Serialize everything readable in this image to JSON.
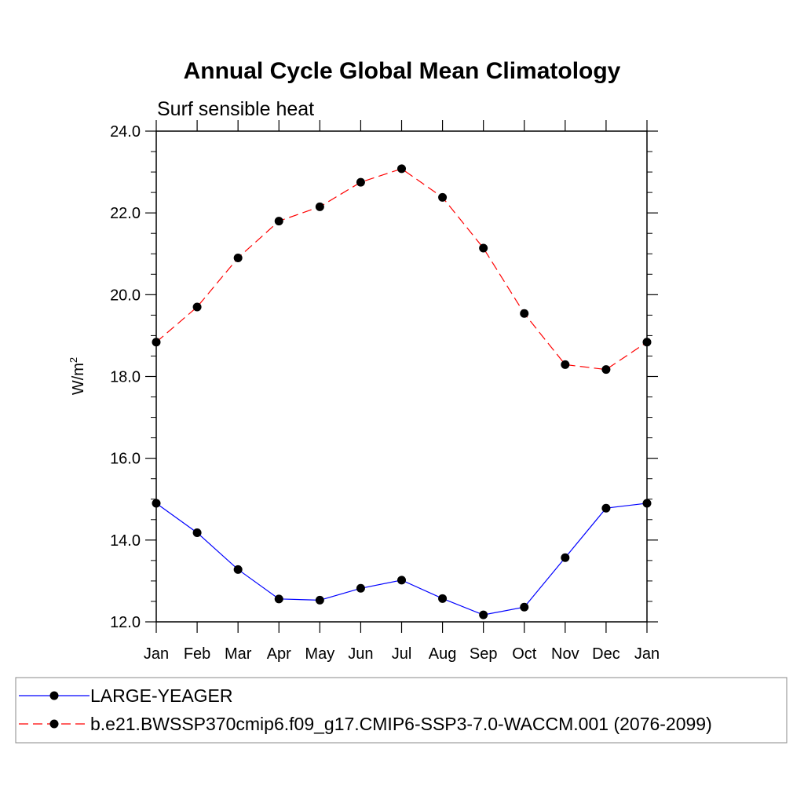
{
  "chart_data": {
    "type": "line",
    "title": "Annual Cycle Global Mean Climatology",
    "subtitle": "Surf sensible heat",
    "ylabel": "W/m",
    "ylabel_sup": "2",
    "xlabel": "",
    "categories": [
      "Jan",
      "Feb",
      "Mar",
      "Apr",
      "May",
      "Jun",
      "Jul",
      "Aug",
      "Sep",
      "Oct",
      "Nov",
      "Dec",
      "Jan"
    ],
    "ylim": [
      12.0,
      24.0
    ],
    "yticks": [
      12.0,
      14.0,
      16.0,
      18.0,
      20.0,
      22.0,
      24.0
    ],
    "ytick_labels": [
      "12.0",
      "14.0",
      "16.0",
      "18.0",
      "20.0",
      "22.0",
      "24.0"
    ],
    "grid": false,
    "legend_position": "bottom",
    "series": [
      {
        "name": "LARGE-YEAGER",
        "color": "#0000ff",
        "dash": "solid",
        "values": [
          14.9,
          14.18,
          13.28,
          12.56,
          12.53,
          12.82,
          13.02,
          12.57,
          12.17,
          12.36,
          13.57,
          14.78,
          14.9
        ]
      },
      {
        "name": "b.e21.BWSSP370cmip6.f09_g17.CMIP6-SSP3-7.0-WACCM.001 (2076-2099)",
        "color": "#ff0000",
        "dash": "dashed",
        "values": [
          18.84,
          19.7,
          20.9,
          21.8,
          22.15,
          22.75,
          23.08,
          22.38,
          21.14,
          19.54,
          18.29,
          18.17,
          18.84
        ]
      }
    ]
  }
}
